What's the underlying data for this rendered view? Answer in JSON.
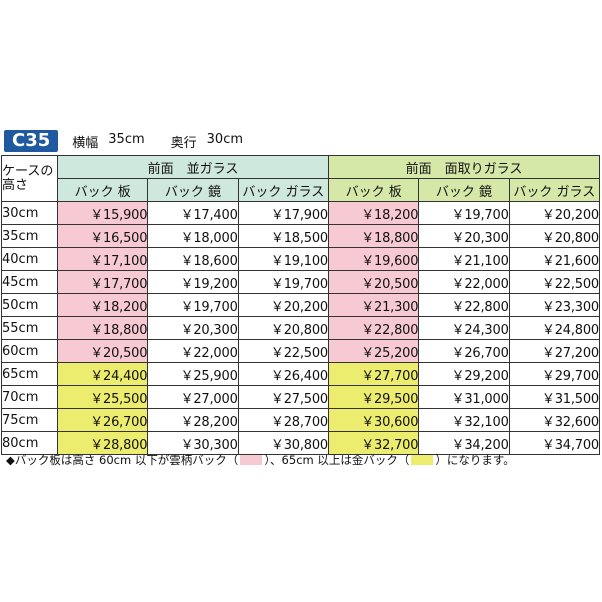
{
  "header": {
    "code": "C35",
    "width_label": "横幅",
    "width_value": "35cm",
    "depth_label": "奥行",
    "depth_value": "30cm"
  },
  "table": {
    "corner_line1": "ケースの",
    "corner_line2": "高さ",
    "groups": [
      "前面　並ガラス",
      "前面　面取りガラス"
    ],
    "subheaders": [
      "バック 板",
      "バック 鏡",
      "バック ガラス",
      "バック 板",
      "バック 鏡",
      "バック ガラス"
    ],
    "rows": [
      {
        "size": "30cm",
        "prices": [
          "￥15,900",
          "￥17,400",
          "￥17,900",
          "￥18,200",
          "￥19,700",
          "￥20,200"
        ],
        "tint": "pink"
      },
      {
        "size": "35cm",
        "prices": [
          "￥16,500",
          "￥18,000",
          "￥18,500",
          "￥18,800",
          "￥20,300",
          "￥20,800"
        ],
        "tint": "pink"
      },
      {
        "size": "40cm",
        "prices": [
          "￥17,100",
          "￥18,600",
          "￥19,100",
          "￥19,600",
          "￥21,100",
          "￥21,600"
        ],
        "tint": "pink"
      },
      {
        "size": "45cm",
        "prices": [
          "￥17,700",
          "￥19,200",
          "￥19,700",
          "￥20,500",
          "￥22,000",
          "￥22,500"
        ],
        "tint": "pink"
      },
      {
        "size": "50cm",
        "prices": [
          "￥18,200",
          "￥19,700",
          "￥20,200",
          "￥21,300",
          "￥22,800",
          "￥23,300"
        ],
        "tint": "pink"
      },
      {
        "size": "55cm",
        "prices": [
          "￥18,800",
          "￥20,300",
          "￥20,800",
          "￥22,800",
          "￥24,300",
          "￥24,800"
        ],
        "tint": "pink"
      },
      {
        "size": "60cm",
        "prices": [
          "￥20,500",
          "￥22,000",
          "￥22,500",
          "￥25,200",
          "￥26,700",
          "￥27,200"
        ],
        "tint": "pink"
      },
      {
        "size": "65cm",
        "prices": [
          "￥24,400",
          "￥25,900",
          "￥26,400",
          "￥27,700",
          "￥29,200",
          "￥29,700"
        ],
        "tint": "yellow"
      },
      {
        "size": "70cm",
        "prices": [
          "￥25,500",
          "￥27,000",
          "￥27,500",
          "￥29,500",
          "￥31,000",
          "￥31,500"
        ],
        "tint": "yellow"
      },
      {
        "size": "75cm",
        "prices": [
          "￥26,700",
          "￥28,200",
          "￥28,700",
          "￥30,600",
          "￥32,100",
          "￥32,600"
        ],
        "tint": "yellow"
      },
      {
        "size": "80cm",
        "prices": [
          "￥28,800",
          "￥30,300",
          "￥30,800",
          "￥32,700",
          "￥34,200",
          "￥34,700"
        ],
        "tint": "yellow"
      }
    ]
  },
  "note": {
    "part1": "◆バック板は高さ 60cm 以下が雲柄バック（",
    "part2": "）、65cm 以上は金バック（",
    "part3": "）になります。"
  },
  "colors": {
    "badge": "#1f5aa0",
    "flat_header": "#cfe8dd",
    "bevel_header": "#d6e8a8",
    "cloud_back": "#f7c9d3",
    "gold_back": "#ecec6e"
  }
}
